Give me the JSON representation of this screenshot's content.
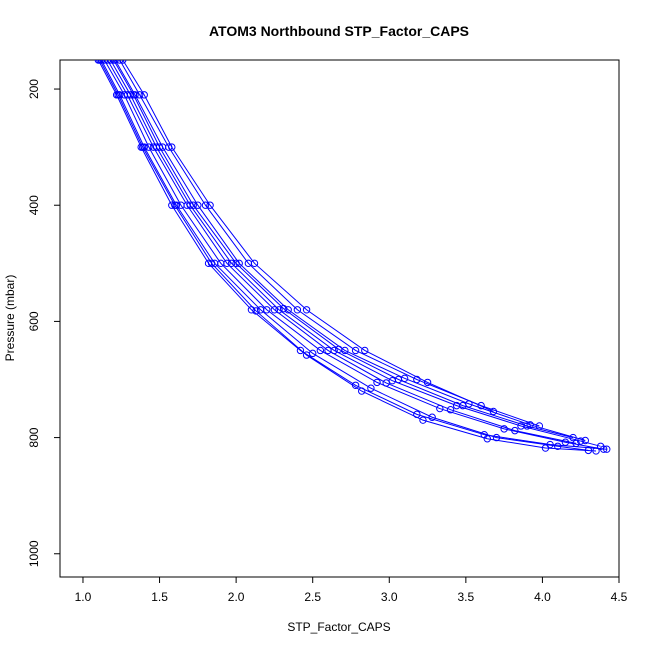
{
  "chart_data": {
    "type": "line",
    "title": "ATOM3 Northbound STP_Factor_CAPS",
    "xlabel": "STP_Factor_CAPS",
    "ylabel": "Pressure (mbar)",
    "xlim": [
      0.85,
      4.5
    ],
    "ylim": [
      1040,
      150
    ],
    "y_reversed": true,
    "x_ticks": [
      "1.0",
      "1.5",
      "2.0",
      "2.5",
      "3.0",
      "3.5",
      "4.0",
      "4.5"
    ],
    "y_ticks": [
      "200",
      "400",
      "600",
      "800",
      "1000"
    ],
    "grid": false,
    "legend": "none",
    "markers": "open-circle",
    "series_color": "#0000ff",
    "series": [
      {
        "x": [
          1.1,
          1.22,
          1.38,
          1.58,
          1.82,
          2.1,
          2.42,
          2.78,
          3.18,
          3.62,
          4.05,
          4.42
        ],
        "y": [
          150,
          210,
          300,
          400,
          500,
          580,
          650,
          710,
          760,
          795,
          812,
          820
        ]
      },
      {
        "x": [
          1.14,
          1.27,
          1.43,
          1.64,
          1.9,
          2.2,
          2.55,
          2.92,
          3.33,
          3.75,
          4.15,
          4.4
        ],
        "y": [
          150,
          210,
          300,
          400,
          500,
          580,
          650,
          705,
          750,
          785,
          808,
          820
        ]
      },
      {
        "x": [
          1.18,
          1.31,
          1.48,
          1.7,
          1.97,
          2.28,
          2.64,
          3.02,
          3.44,
          3.86,
          4.25,
          4.38
        ],
        "y": [
          150,
          210,
          300,
          400,
          500,
          580,
          650,
          702,
          745,
          780,
          806,
          815
        ]
      },
      {
        "x": [
          1.21,
          1.34,
          1.52,
          1.75,
          2.02,
          2.34,
          2.71,
          3.1,
          3.52,
          3.92,
          4.28
        ],
        "y": [
          150,
          210,
          300,
          400,
          500,
          580,
          650,
          698,
          742,
          778,
          805
        ]
      },
      {
        "x": [
          1.12,
          1.24,
          1.4,
          1.61,
          1.86,
          2.16,
          2.5,
          2.88,
          3.28,
          3.7,
          4.1,
          4.3
        ],
        "y": [
          150,
          210,
          300,
          400,
          500,
          580,
          655,
          715,
          765,
          800,
          815,
          822
        ]
      },
      {
        "x": [
          1.24,
          1.37,
          1.56,
          1.8,
          2.08,
          2.4,
          2.78,
          3.18,
          3.6,
          3.98
        ],
        "y": [
          150,
          210,
          300,
          400,
          500,
          580,
          650,
          700,
          745,
          780
        ]
      },
      {
        "x": [
          1.16,
          1.29,
          1.46,
          1.68,
          1.94,
          2.25,
          2.6,
          2.98,
          3.4,
          3.82,
          4.22
        ],
        "y": [
          150,
          210,
          300,
          400,
          500,
          580,
          650,
          706,
          752,
          788,
          810
        ]
      },
      {
        "x": [
          1.2,
          1.33,
          1.5,
          1.72,
          2.0,
          2.31,
          2.67,
          3.06,
          3.48,
          3.9,
          4.2
        ],
        "y": [
          150,
          210,
          300,
          400,
          500,
          578,
          648,
          700,
          745,
          780,
          800
        ]
      },
      {
        "x": [
          1.26,
          1.4,
          1.58,
          1.83,
          2.12,
          2.46,
          2.84,
          3.25,
          3.68
        ],
        "y": [
          150,
          210,
          300,
          400,
          500,
          580,
          650,
          705,
          755
        ]
      },
      {
        "x": [
          1.11,
          1.23,
          1.39,
          1.6,
          1.84,
          2.13,
          2.46,
          2.82,
          3.22,
          3.64,
          4.02,
          4.35
        ],
        "y": [
          150,
          210,
          300,
          400,
          500,
          582,
          658,
          720,
          770,
          802,
          818,
          823
        ]
      }
    ]
  }
}
